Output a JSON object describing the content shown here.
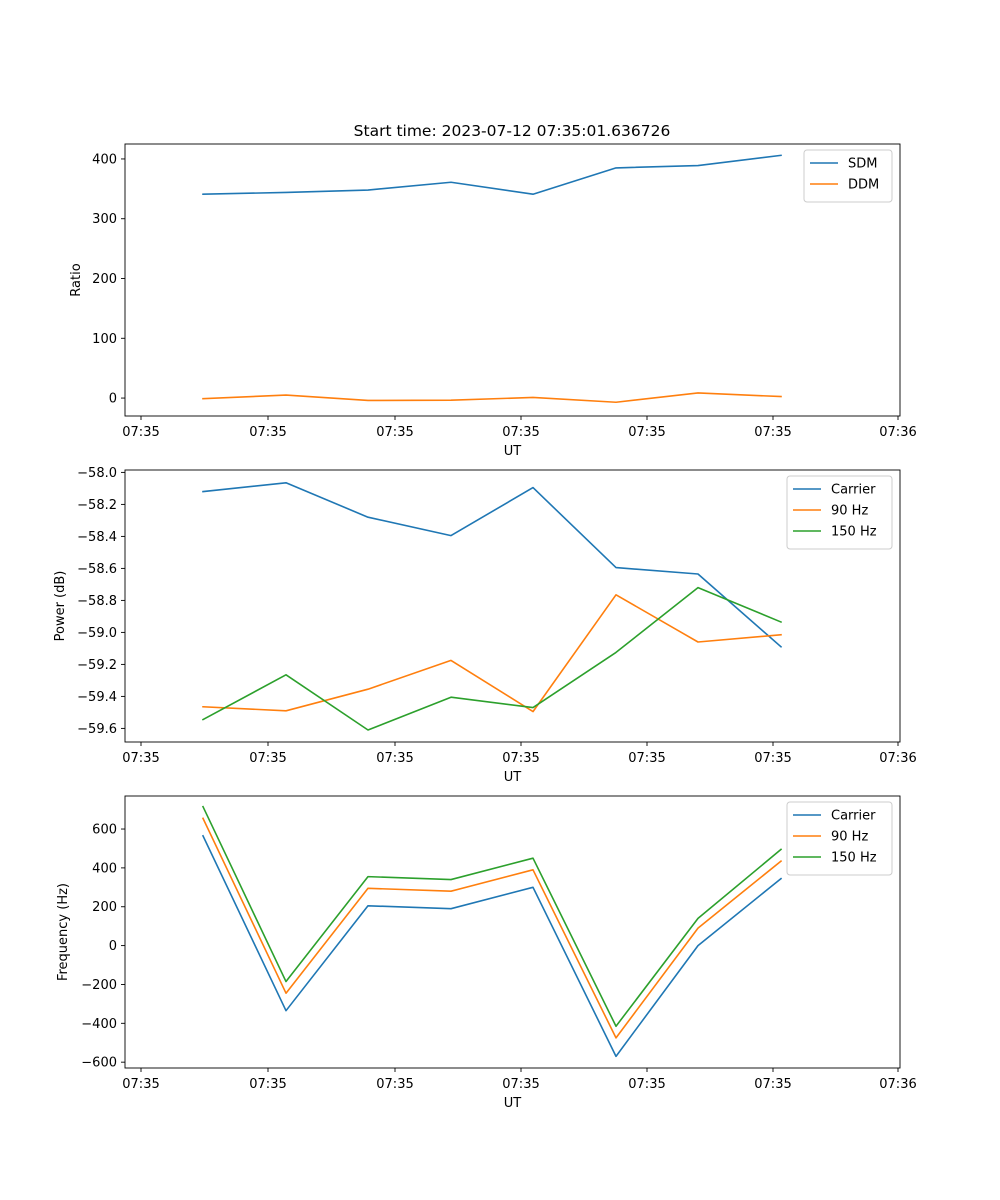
{
  "chart_data": [
    {
      "type": "line",
      "title": "Start time: 2023-07-12 07:35:01.636726",
      "xlabel": "UT",
      "ylabel": "Ratio",
      "x_tick_labels": [
        "07:35",
        "07:35",
        "07:35",
        "07:35",
        "07:35",
        "07:35",
        "07:36"
      ],
      "y_ticks": [
        0,
        100,
        200,
        300,
        400
      ],
      "ylim": [
        -30,
        425
      ],
      "legend_position": "top-right",
      "grid": false,
      "series": [
        {
          "name": "SDM",
          "color": "#1f77b4",
          "values": [
            341,
            344,
            348,
            361,
            341,
            385,
            389,
            406
          ]
        },
        {
          "name": "DDM",
          "color": "#ff7f0e",
          "values": [
            -1,
            5,
            -4,
            -3.5,
            1,
            -7,
            8.5,
            2.5
          ]
        }
      ]
    },
    {
      "type": "line",
      "title": "",
      "xlabel": "UT",
      "ylabel": "Power (dB)",
      "x_tick_labels": [
        "07:35",
        "07:35",
        "07:35",
        "07:35",
        "07:35",
        "07:35",
        "07:36"
      ],
      "y_ticks": [
        -59.6,
        -59.4,
        -59.2,
        -59.0,
        -58.8,
        -58.6,
        -58.4,
        -58.2,
        -58.0
      ],
      "ylim": [
        -59.685,
        -57.985
      ],
      "legend_position": "top-right",
      "grid": false,
      "series": [
        {
          "name": "Carrier",
          "color": "#1f77b4",
          "values": [
            -58.12,
            -58.065,
            -58.28,
            -58.395,
            -58.095,
            -58.595,
            -58.635,
            -59.09
          ]
        },
        {
          "name": "90 Hz",
          "color": "#ff7f0e",
          "values": [
            -59.465,
            -59.49,
            -59.355,
            -59.175,
            -59.495,
            -58.765,
            -59.06,
            -59.015
          ]
        },
        {
          "name": "150 Hz",
          "color": "#2ca02c",
          "values": [
            -59.545,
            -59.265,
            -59.61,
            -59.405,
            -59.47,
            -59.125,
            -58.72,
            -58.935
          ]
        }
      ]
    },
    {
      "type": "line",
      "title": "",
      "xlabel": "UT",
      "ylabel": "Frequency (Hz)",
      "x_tick_labels": [
        "07:35",
        "07:35",
        "07:35",
        "07:35",
        "07:35",
        "07:35",
        "07:36"
      ],
      "y_ticks": [
        -600,
        -400,
        -200,
        0,
        200,
        400,
        600
      ],
      "ylim": [
        -630,
        770
      ],
      "legend_position": "top-right",
      "grid": false,
      "series": [
        {
          "name": "Carrier",
          "color": "#1f77b4",
          "values": [
            565,
            -335,
            205,
            190,
            300,
            -570,
            0,
            345
          ]
        },
        {
          "name": "90 Hz",
          "color": "#ff7f0e",
          "values": [
            655,
            -245,
            295,
            280,
            390,
            -475,
            90,
            435
          ]
        },
        {
          "name": "150 Hz",
          "color": "#2ca02c",
          "values": [
            715,
            -185,
            355,
            340,
            450,
            -415,
            140,
            495
          ]
        }
      ]
    }
  ]
}
